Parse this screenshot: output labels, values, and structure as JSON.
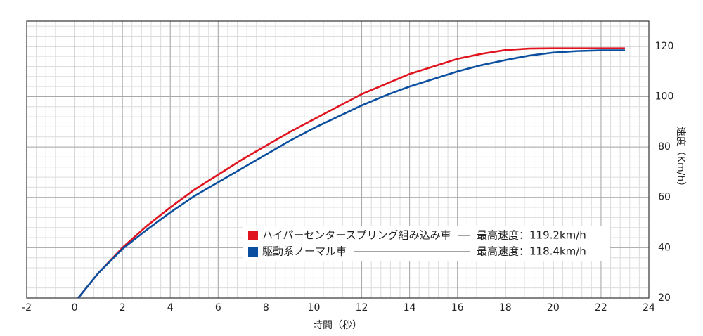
{
  "chart_data": {
    "type": "line",
    "x_label": "時間（秒）",
    "y_label": "速度（Km/h）",
    "xlim": [
      -2,
      24
    ],
    "xticks": [
      -2,
      0,
      2,
      4,
      6,
      8,
      10,
      12,
      14,
      16,
      18,
      20,
      22,
      24
    ],
    "ylim": [
      20,
      130
    ],
    "yticks": [
      20,
      40,
      60,
      80,
      100,
      120
    ],
    "y_axis_side": "right",
    "grid": true,
    "series": [
      {
        "name": "ハイパーセンタースプリング組み込み車",
        "max_label": "最高速度：119.2km/h",
        "color": "#e0141e",
        "x": [
          0.15,
          1,
          2,
          3,
          4,
          5,
          6,
          7,
          8,
          9,
          10,
          11,
          12,
          13,
          14,
          15,
          16,
          17,
          18,
          19,
          20,
          21,
          22,
          23
        ],
        "values": [
          20,
          30,
          40,
          48.5,
          56,
          63,
          69,
          75,
          80.5,
          86,
          91,
          96,
          101,
          105,
          109,
          112,
          115,
          117,
          118.5,
          119.1,
          119.2,
          119.2,
          119.2,
          119.2
        ]
      },
      {
        "name": "駆動系ノーマル車",
        "max_label": "最高速度：118.4km/h",
        "color": "#0a4ea0",
        "x": [
          0.15,
          1,
          2,
          3,
          4,
          5,
          6,
          7,
          8,
          9,
          10,
          11,
          12,
          13,
          14,
          15,
          16,
          17,
          18,
          19,
          20,
          21,
          22,
          23
        ],
        "values": [
          20,
          30,
          39.5,
          47,
          54,
          60.5,
          66,
          71.5,
          77,
          82.5,
          87.5,
          92,
          96.5,
          100.5,
          104,
          107,
          110,
          112.5,
          114.5,
          116.3,
          117.5,
          118.1,
          118.4,
          118.4
        ]
      }
    ]
  }
}
